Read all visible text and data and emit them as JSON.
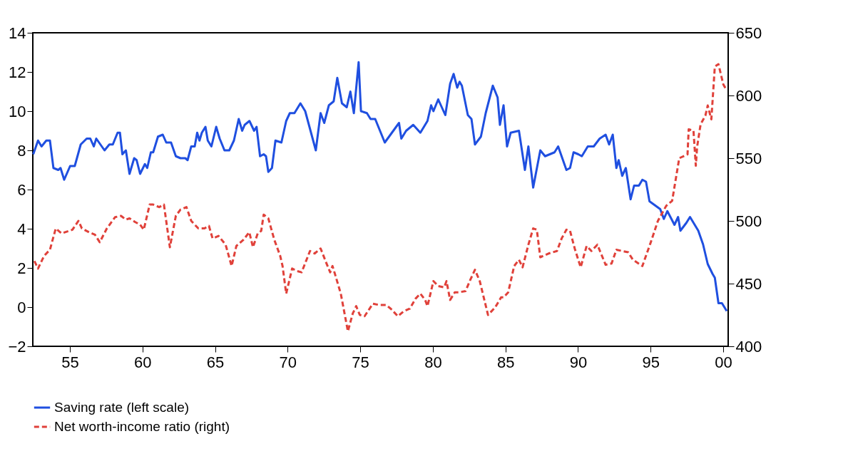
{
  "chart_data": {
    "type": "line",
    "xlim": [
      1952.45,
      2000.34
    ],
    "ylim": [
      -2,
      14
    ],
    "y2lim": [
      400,
      650
    ],
    "xticks": [
      {
        "value": 1955,
        "label": "55"
      },
      {
        "value": 1960,
        "label": "60"
      },
      {
        "value": 1965,
        "label": "65"
      },
      {
        "value": 1970,
        "label": "70"
      },
      {
        "value": 1975,
        "label": "75"
      },
      {
        "value": 1980,
        "label": "80"
      },
      {
        "value": 1985,
        "label": "85"
      },
      {
        "value": 1990,
        "label": "90"
      },
      {
        "value": 1995,
        "label": "95"
      },
      {
        "value": 2000,
        "label": "00"
      }
    ],
    "yticks": [
      -2,
      0,
      2,
      4,
      6,
      8,
      10,
      12,
      14
    ],
    "y2ticks": [
      400,
      450,
      500,
      550,
      600,
      650
    ],
    "grid": false,
    "legend": "bottom",
    "marker": "none",
    "series": [
      {
        "name": "Saving rate (left scale)",
        "color": "#1f4fe0",
        "axis": "y",
        "line_style": "solid",
        "x": [
          1952.48,
          1952.81,
          1953.05,
          1953.38,
          1953.63,
          1953.87,
          1954.2,
          1954.36,
          1954.61,
          1955.02,
          1955.34,
          1955.75,
          1956.16,
          1956.41,
          1956.65,
          1956.82,
          1957.39,
          1957.72,
          1957.96,
          1958.29,
          1958.45,
          1958.62,
          1958.86,
          1959.11,
          1959.43,
          1959.6,
          1959.84,
          1960.17,
          1960.33,
          1960.58,
          1960.74,
          1961.07,
          1961.4,
          1961.64,
          1961.97,
          1962.3,
          1962.62,
          1962.95,
          1963.11,
          1963.36,
          1963.6,
          1963.77,
          1963.93,
          1964.09,
          1964.34,
          1964.5,
          1964.75,
          1965.08,
          1965.32,
          1965.65,
          1965.98,
          1966.3,
          1966.63,
          1966.87,
          1967.04,
          1967.37,
          1967.69,
          1967.86,
          1968.1,
          1968.35,
          1968.51,
          1968.67,
          1968.92,
          1969.16,
          1969.57,
          1969.9,
          1970.15,
          1970.47,
          1970.88,
          1971.21,
          1971.94,
          1972.27,
          1972.52,
          1972.84,
          1973.17,
          1973.42,
          1973.74,
          1974.07,
          1974.32,
          1974.56,
          1974.89,
          1975.05,
          1975.46,
          1975.71,
          1976.03,
          1976.69,
          1977.18,
          1977.67,
          1977.83,
          1978.16,
          1978.65,
          1979.14,
          1979.63,
          1979.88,
          1980.04,
          1980.37,
          1980.86,
          1981.19,
          1981.43,
          1981.68,
          1981.84,
          1982.0,
          1982.41,
          1982.66,
          1982.9,
          1983.31,
          1983.64,
          1984.13,
          1984.46,
          1984.62,
          1984.87,
          1985.11,
          1985.36,
          1985.93,
          1986.34,
          1986.58,
          1986.75,
          1986.91,
          1987.4,
          1987.73,
          1988.38,
          1988.63,
          1989.2,
          1989.45,
          1989.69,
          1990.02,
          1990.26,
          1990.67,
          1991.08,
          1991.49,
          1991.9,
          1992.14,
          1992.39,
          1992.64,
          1992.8,
          1993.04,
          1993.29,
          1993.62,
          1993.86,
          1994.19,
          1994.43,
          1994.68,
          1994.92,
          1995.66,
          1995.91,
          1996.15,
          1996.64,
          1996.89,
          1997.05,
          1997.46,
          1997.71,
          1998.28,
          1998.61,
          1998.93,
          1999.26,
          1999.42,
          1999.67,
          1999.91,
          2000.24
        ],
        "values": [
          7.8,
          8.5,
          8.2,
          8.5,
          8.5,
          7.1,
          7.0,
          7.1,
          6.5,
          7.2,
          7.2,
          8.3,
          8.6,
          8.6,
          8.2,
          8.6,
          8.0,
          8.3,
          8.3,
          8.9,
          8.9,
          7.8,
          8.0,
          6.8,
          7.6,
          7.5,
          6.8,
          7.3,
          7.1,
          7.9,
          7.9,
          8.7,
          8.8,
          8.4,
          8.4,
          7.7,
          7.6,
          7.6,
          7.5,
          8.2,
          8.2,
          8.9,
          8.5,
          8.9,
          9.2,
          8.5,
          8.2,
          9.2,
          8.6,
          8.0,
          8.0,
          8.5,
          9.6,
          9.0,
          9.3,
          9.5,
          9.0,
          9.2,
          7.7,
          7.8,
          7.7,
          6.9,
          7.1,
          8.5,
          8.4,
          9.5,
          9.9,
          9.9,
          10.4,
          10.0,
          8.0,
          9.9,
          9.4,
          10.3,
          10.5,
          11.7,
          10.4,
          10.2,
          11.0,
          9.9,
          12.5,
          10.0,
          9.9,
          9.6,
          9.6,
          8.4,
          8.9,
          9.4,
          8.6,
          9.0,
          9.3,
          8.9,
          9.5,
          10.3,
          10.0,
          10.6,
          9.8,
          11.4,
          11.9,
          11.2,
          11.5,
          11.3,
          9.8,
          9.6,
          8.3,
          8.7,
          9.9,
          11.3,
          10.7,
          9.3,
          10.3,
          8.2,
          8.9,
          9.0,
          7.0,
          8.2,
          7.1,
          6.1,
          8.0,
          7.7,
          7.9,
          8.2,
          7.0,
          7.1,
          7.9,
          7.8,
          7.7,
          8.2,
          8.2,
          8.6,
          8.8,
          8.3,
          8.8,
          7.1,
          7.5,
          6.7,
          7.1,
          5.5,
          6.2,
          6.2,
          6.5,
          6.4,
          5.4,
          5.0,
          4.5,
          4.9,
          4.2,
          4.6,
          3.9,
          4.3,
          4.6,
          3.9,
          3.2,
          2.2,
          1.7,
          1.5,
          0.2,
          0.2,
          -0.2
        ]
      },
      {
        "name": "Net worth-income ratio (right)",
        "color": "#e0413a",
        "axis": "y2",
        "line_style": "dashed",
        "x": [
          1952.56,
          1952.81,
          1953.22,
          1953.63,
          1954.03,
          1954.44,
          1955.18,
          1955.59,
          1955.83,
          1956.32,
          1956.73,
          1957.06,
          1957.55,
          1958.12,
          1958.53,
          1958.86,
          1959.11,
          1959.51,
          1959.84,
          1960.09,
          1960.5,
          1960.74,
          1961.15,
          1961.48,
          1961.89,
          1962.3,
          1962.62,
          1963.03,
          1963.36,
          1963.85,
          1964.26,
          1964.58,
          1964.83,
          1965.24,
          1965.73,
          1966.14,
          1966.47,
          1966.96,
          1967.36,
          1967.61,
          1967.94,
          1968.18,
          1968.35,
          1968.67,
          1969.08,
          1969.49,
          1969.65,
          1969.9,
          1970.31,
          1970.64,
          1970.96,
          1971.54,
          1971.86,
          1972.27,
          1972.68,
          1972.93,
          1973.09,
          1973.25,
          1973.66,
          1974.15,
          1974.48,
          1974.72,
          1974.97,
          1975.3,
          1975.87,
          1976.28,
          1976.77,
          1977.1,
          1977.59,
          1978.0,
          1978.41,
          1978.81,
          1979.14,
          1979.47,
          1979.63,
          1980.04,
          1980.37,
          1980.78,
          1980.94,
          1981.19,
          1981.51,
          1981.76,
          1982.25,
          1982.58,
          1982.9,
          1983.23,
          1983.8,
          1984.29,
          1984.7,
          1984.87,
          1985.19,
          1985.6,
          1985.93,
          1986.18,
          1986.58,
          1986.91,
          1987.16,
          1987.4,
          1987.97,
          1988.55,
          1988.87,
          1989.2,
          1989.45,
          1989.77,
          1990.18,
          1990.59,
          1990.92,
          1991.33,
          1991.9,
          1992.31,
          1992.64,
          1993.04,
          1993.45,
          1993.78,
          1994.43,
          1995.01,
          1995.5,
          1996.07,
          1996.48,
          1996.97,
          1997.54,
          1997.62,
          1997.95,
          1998.11,
          1998.2,
          1998.44,
          1998.77,
          1998.93,
          1999.18,
          1999.42,
          1999.67,
          2000.0,
          2000.24
        ],
        "values": [
          468,
          462,
          472,
          477,
          494,
          490,
          493,
          500,
          494,
          491,
          489,
          483,
          494,
          503,
          504,
          501,
          502,
          499,
          497,
          493,
          513,
          513,
          511,
          513,
          479,
          504,
          509,
          511,
          500,
          494,
          494,
          496,
          486,
          488,
          481,
          464,
          480,
          485,
          491,
          479,
          490,
          492,
          505,
          502,
          485,
          472,
          464,
          442,
          462,
          460,
          459,
          476,
          474,
          478,
          466,
          459,
          464,
          458,
          442,
          412,
          426,
          432,
          425,
          424,
          434,
          433,
          433,
          430,
          424,
          428,
          430,
          438,
          442,
          437,
          432,
          452,
          448,
          447,
          452,
          437,
          443,
          443,
          444,
          453,
          461,
          452,
          425,
          431,
          439,
          439,
          443,
          464,
          469,
          463,
          481,
          494,
          493,
          471,
          474,
          476,
          486,
          493,
          492,
          478,
          463,
          480,
          476,
          481,
          465,
          466,
          477,
          476,
          475,
          469,
          464,
          483,
          500,
          512,
          516,
          550,
          553,
          573,
          572,
          544,
          559,
          577,
          584,
          592,
          581,
          623,
          625,
          609,
          604
        ]
      }
    ]
  }
}
